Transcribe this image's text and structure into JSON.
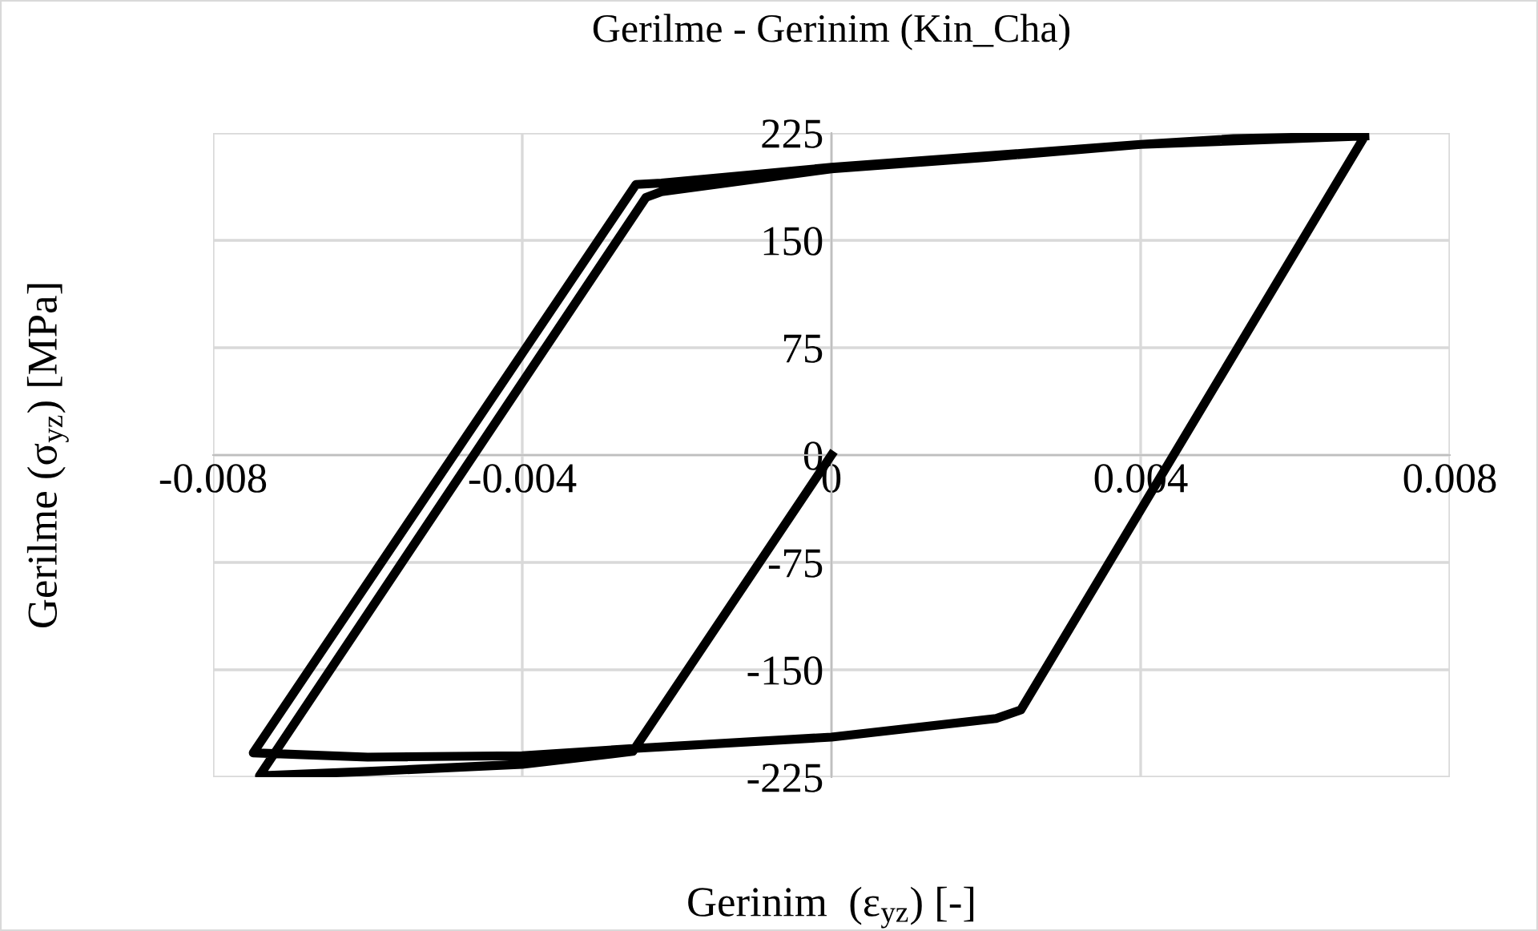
{
  "chart_data": {
    "type": "line",
    "title": "Gerilme - Gerinim (Kin_Cha)",
    "xlabel": "Gerinim  (ε$_{yz}$) [-]",
    "ylabel": "Gerilme (σ$_{yz}$) [MPa]",
    "series": [
      {
        "color": "#000000",
        "x": [
          0,
          -0.00257,
          -0.004,
          -0.006,
          -0.0074,
          -0.0024,
          -0.0022,
          0,
          0.002,
          0.004,
          0.0052,
          0.0069,
          0.00245,
          0.00213,
          0,
          -0.00257,
          -0.004,
          -0.006,
          -0.00748,
          -0.00253,
          -0.0022,
          0,
          0.004,
          0.0069
        ],
        "values": [
          0,
          -207,
          -216,
          -221,
          -224,
          180,
          184,
          200,
          208,
          217,
          221,
          223,
          -178,
          -184,
          -197,
          -205,
          -210,
          -211,
          -208,
          189,
          190,
          201,
          217,
          223
        ]
      }
    ],
    "xlim": [
      -0.008,
      0.008
    ],
    "xticks": [
      -0.008,
      -0.004,
      0,
      0.004,
      0.008
    ],
    "ylim": [
      -225,
      225
    ],
    "yticks": [
      -225,
      -150,
      -75,
      0,
      75,
      150,
      225
    ],
    "grid": true,
    "line_style": "solid",
    "marker": "none"
  }
}
